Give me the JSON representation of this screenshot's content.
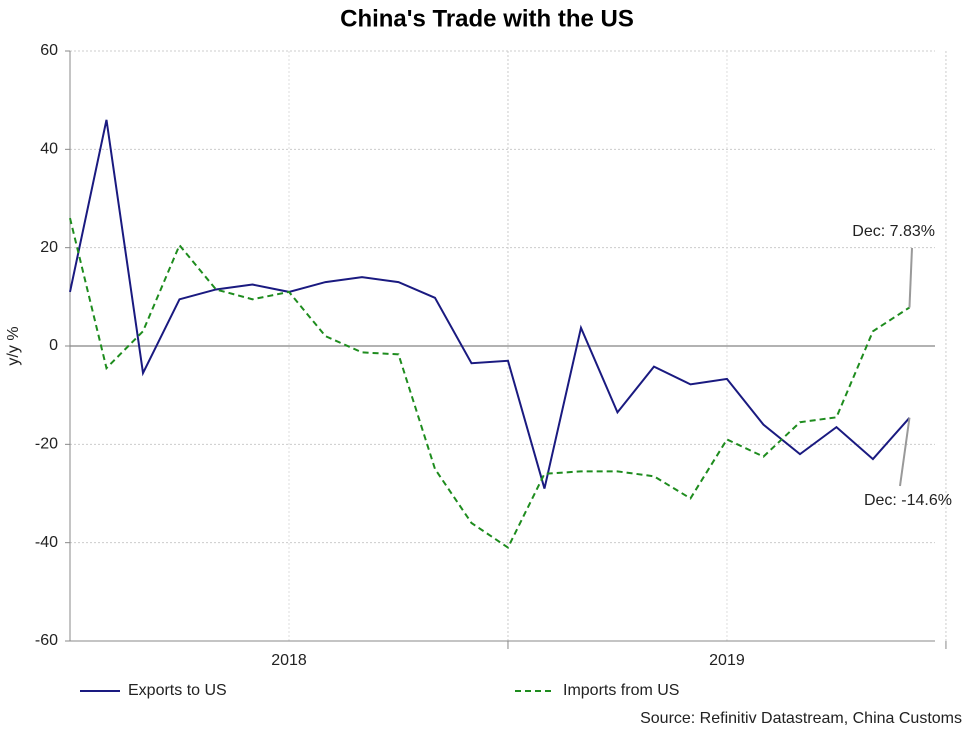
{
  "chart_data": {
    "type": "line",
    "title": "China's Trade with the US",
    "ylabel": "y/y %",
    "source": "Source: Refinitiv Datastream, China Customs",
    "x": [
      2018.0,
      2018.0833,
      2018.1667,
      2018.25,
      2018.3333,
      2018.4167,
      2018.5,
      2018.5833,
      2018.6667,
      2018.75,
      2018.8333,
      2018.9167,
      2019.0,
      2019.0833,
      2019.1667,
      2019.25,
      2019.3333,
      2019.4167,
      2019.5,
      2019.5833,
      2019.6667,
      2019.75,
      2019.8333,
      2019.9167
    ],
    "series": [
      {
        "name": "Exports to US",
        "color": "#1a1a80",
        "dash": false,
        "values": [
          11,
          46,
          -5.5,
          9.5,
          11.5,
          12.5,
          11,
          13,
          14,
          13,
          9.8,
          -3.5,
          -3,
          -29,
          3.7,
          -13.5,
          -4.2,
          -7.8,
          -6.7,
          -16,
          -22,
          -16.5,
          -23,
          -14.6
        ]
      },
      {
        "name": "Imports from US",
        "color": "#1e8c1e",
        "dash": true,
        "values": [
          26,
          -4.5,
          3,
          20.5,
          11.5,
          9.5,
          11,
          2,
          -1.3,
          -1.7,
          -25,
          -36,
          -41,
          -26,
          -25.5,
          -25.5,
          -26.5,
          -31,
          -19,
          -22.5,
          -15.5,
          -14.5,
          3,
          7.83
        ]
      }
    ],
    "annotations": [
      {
        "text": "Dec: 7.83%",
        "series": 1,
        "index": 23
      },
      {
        "text": "Dec: -14.6%",
        "series": 0,
        "index": 23
      }
    ],
    "xlim": [
      2018.0,
      2019.975
    ],
    "xticks": [
      {
        "value": 2018.5,
        "label": "2018"
      },
      {
        "value": 2019.5,
        "label": "2019"
      }
    ],
    "year_boundaries": [
      2019,
      2020
    ],
    "ylim": [
      -60,
      60
    ],
    "yticks": [
      -60,
      -40,
      -20,
      0,
      20,
      40,
      60
    ],
    "grid": true
  }
}
